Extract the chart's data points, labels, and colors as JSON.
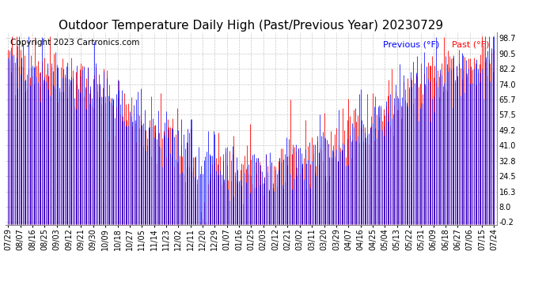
{
  "title": "Outdoor Temperature Daily High (Past/Previous Year) 20230729",
  "copyright_text": "Copyright 2023 Cartronics.com",
  "legend_previous": "Previous (°F)",
  "legend_past": "Past (°F)",
  "color_previous": "blue",
  "color_past": "red",
  "yticks": [
    98.7,
    90.5,
    82.2,
    74.0,
    65.7,
    57.5,
    49.2,
    41.0,
    32.8,
    24.5,
    16.3,
    8.0,
    -0.2
  ],
  "ymin": -0.2,
  "ymax": 98.7,
  "background_color": "#ffffff",
  "grid_color": "#c8c8c8",
  "title_fontsize": 11,
  "tick_fontsize": 7,
  "copyright_fontsize": 7.5,
  "legend_fontsize": 8,
  "xtick_labels": [
    "07/29",
    "08/07",
    "08/16",
    "08/25",
    "09/03",
    "09/12",
    "09/21",
    "09/30",
    "10/09",
    "10/18",
    "10/27",
    "11/05",
    "11/14",
    "11/23",
    "12/02",
    "12/11",
    "12/20",
    "12/29",
    "01/07",
    "01/16",
    "01/25",
    "02/03",
    "02/12",
    "02/21",
    "03/02",
    "03/11",
    "03/20",
    "03/29",
    "04/07",
    "04/16",
    "04/25",
    "05/04",
    "05/13",
    "05/22",
    "05/31",
    "06/09",
    "06/18",
    "06/27",
    "07/06",
    "07/15",
    "07/24"
  ]
}
